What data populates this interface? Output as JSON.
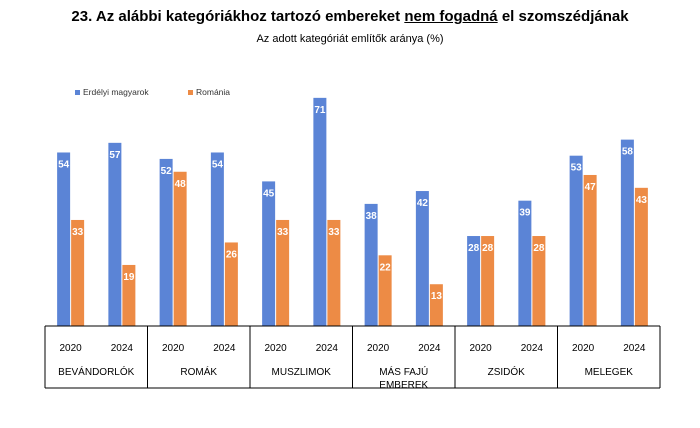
{
  "title": {
    "prefix": "23. Az alábbi kategóriákhoz tartozó embereket ",
    "underlined": "nem fogadná",
    "suffix": " el szomszédjának"
  },
  "subtitle": "Az adott kategóriát említők aránya (%)",
  "colors": {
    "series1": "#5b84d6",
    "series2": "#ed8b45"
  },
  "chart_data": {
    "type": "bar",
    "title": "23. Az alábbi kategóriákhoz tartozó embereket nem fogadná el szomszédjának",
    "subtitle": "Az adott kategóriát említők aránya (%)",
    "legend": "top-left",
    "grid": false,
    "ylim": [
      0,
      75
    ],
    "groups": [
      {
        "name": "BEVÁNDORLÓK",
        "years": [
          "2020",
          "2024"
        ],
        "series1": [
          54,
          57
        ],
        "series2": [
          33,
          19
        ]
      },
      {
        "name": "ROMÁK",
        "years": [
          "2020",
          "2024"
        ],
        "series1": [
          52,
          54
        ],
        "series2": [
          48,
          26
        ]
      },
      {
        "name": "MUSZLIMOK",
        "years": [
          "2020",
          "2024"
        ],
        "series1": [
          45,
          71
        ],
        "series2": [
          33,
          33
        ]
      },
      {
        "name": "MÁS FAJÚ EMBEREK",
        "years": [
          "2020",
          "2024"
        ],
        "series1": [
          38,
          42
        ],
        "series2": [
          22,
          13
        ]
      },
      {
        "name": "ZSIDÓK",
        "years": [
          "2020",
          "2024"
        ],
        "series1": [
          28,
          39
        ],
        "series2": [
          28,
          28
        ]
      },
      {
        "name": "MELEGEK",
        "years": [
          "2020",
          "2024"
        ],
        "series1": [
          53,
          58
        ],
        "series2": [
          47,
          43
        ]
      }
    ],
    "series": [
      {
        "name": "Erdélyi magyarok",
        "color": "#5b84d6"
      },
      {
        "name": "Románia",
        "color": "#ed8b45"
      }
    ]
  }
}
